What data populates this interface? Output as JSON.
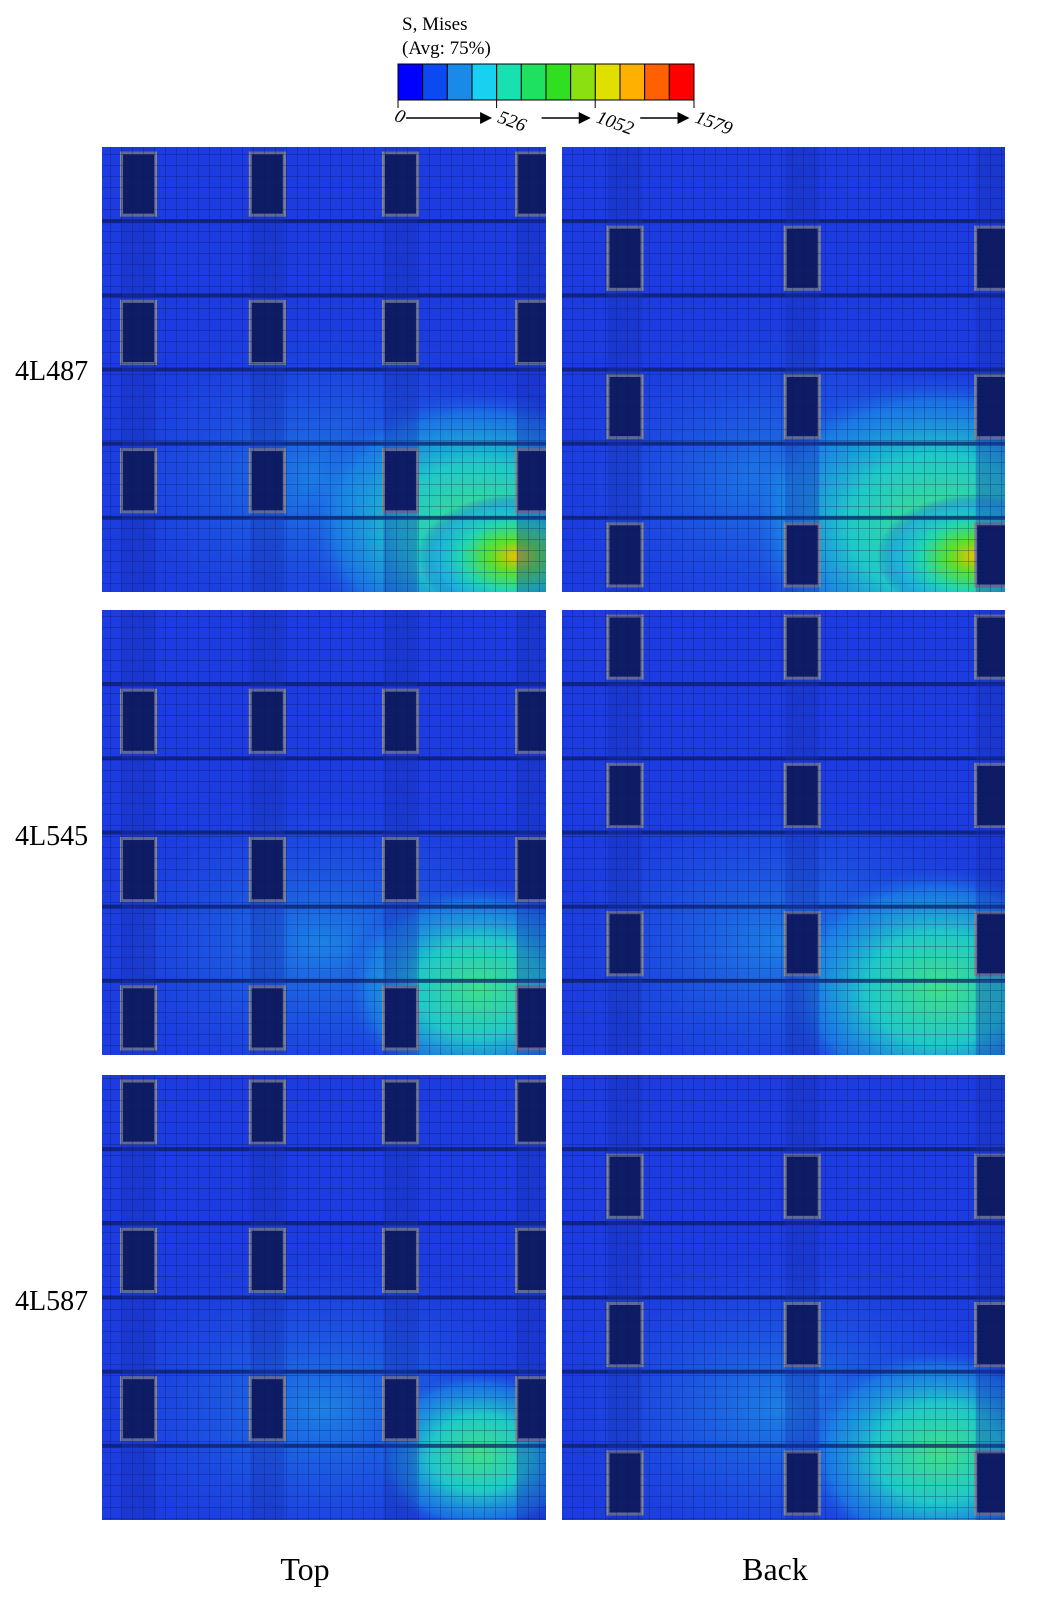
{
  "legend": {
    "title": "S, Mises",
    "subtitle": "(Avg: 75%)",
    "ticks": [
      0,
      526,
      1052,
      1579
    ]
  },
  "rows": [
    {
      "label": "4L487"
    },
    {
      "label": "4L545"
    },
    {
      "label": "4L587"
    }
  ],
  "columns": [
    "Top",
    "Back"
  ]
}
